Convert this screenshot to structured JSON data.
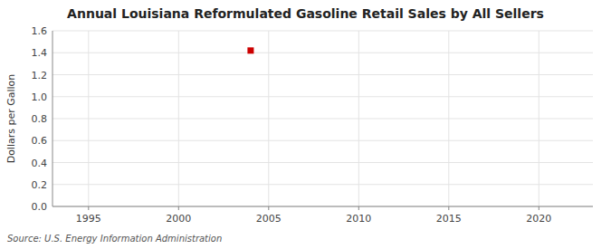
{
  "chart_data": {
    "type": "scatter",
    "title": "Annual Louisiana Reformulated Gasoline Retail Sales by All Sellers",
    "y_label": "Dollars per Gallon",
    "annotations": [
      "Source: U.S. Energy Information Administration"
    ],
    "x": [
      2004
    ],
    "values": [
      1.42
    ],
    "color": "#cc0000",
    "marker": "square",
    "xlim": [
      1993,
      2023
    ],
    "ylim": [
      0.0,
      1.6
    ],
    "xticks": [
      1995,
      2000,
      2005,
      2010,
      2015,
      2020
    ],
    "yticks": [
      {
        "value": 0.0,
        "label": "0.0"
      },
      0.2,
      0.4,
      0.6,
      0.8,
      {
        "value": 1.0,
        "label": "1.0"
      },
      1.2,
      1.4,
      1.6
    ],
    "grid": true
  }
}
